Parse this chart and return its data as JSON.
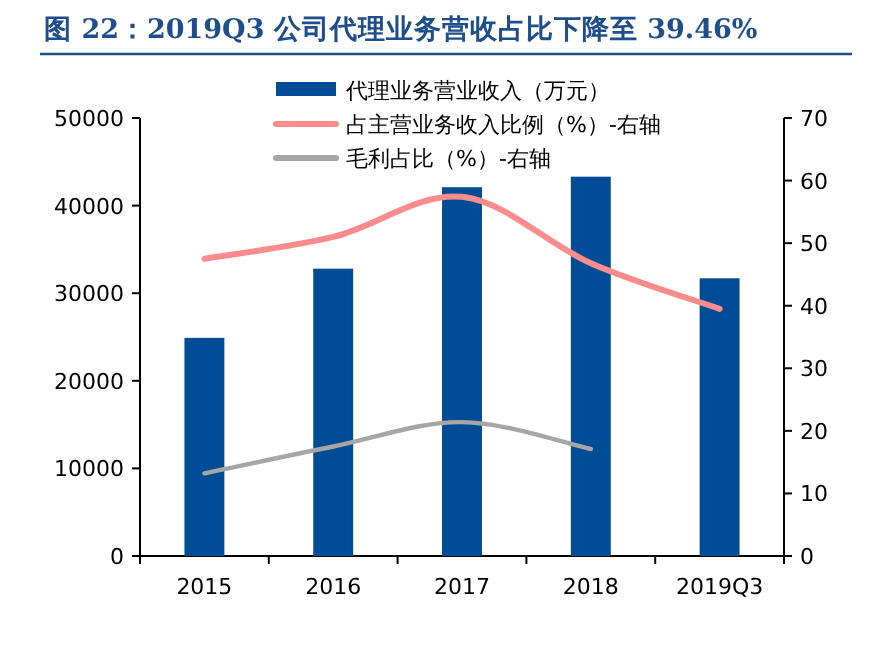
{
  "chart_data": {
    "type": "bar",
    "title": "图 22：2019Q3 公司代理业务营收占比下降至 39.46%",
    "categories": [
      "2015",
      "2016",
      "2017",
      "2018",
      "2019Q3"
    ],
    "series": [
      {
        "name": "代理业务营业收入（万元）",
        "color": "#004c97",
        "values": [
          24900,
          32800,
          42100,
          43300,
          31700
        ]
      },
      {
        "name": "占主营业务收入比例（%）-右轴",
        "type": "line",
        "axis": "y2",
        "color": "#ff8c8c",
        "values": [
          47.5,
          51.0,
          57.4,
          46.8,
          39.5
        ]
      },
      {
        "name": "毛利占比（%）-右轴",
        "type": "line",
        "axis": "y2",
        "color": "#a6a6a6",
        "values": [
          13.2,
          17.5,
          21.4,
          17.1,
          null
        ]
      }
    ],
    "ylim": [
      0,
      50000
    ],
    "yticks": [
      0,
      10000,
      20000,
      30000,
      40000,
      50000
    ],
    "y2lim": [
      0,
      70
    ],
    "y2ticks": [
      0,
      10,
      20,
      30,
      40,
      50,
      60,
      70
    ],
    "legend": "top"
  }
}
